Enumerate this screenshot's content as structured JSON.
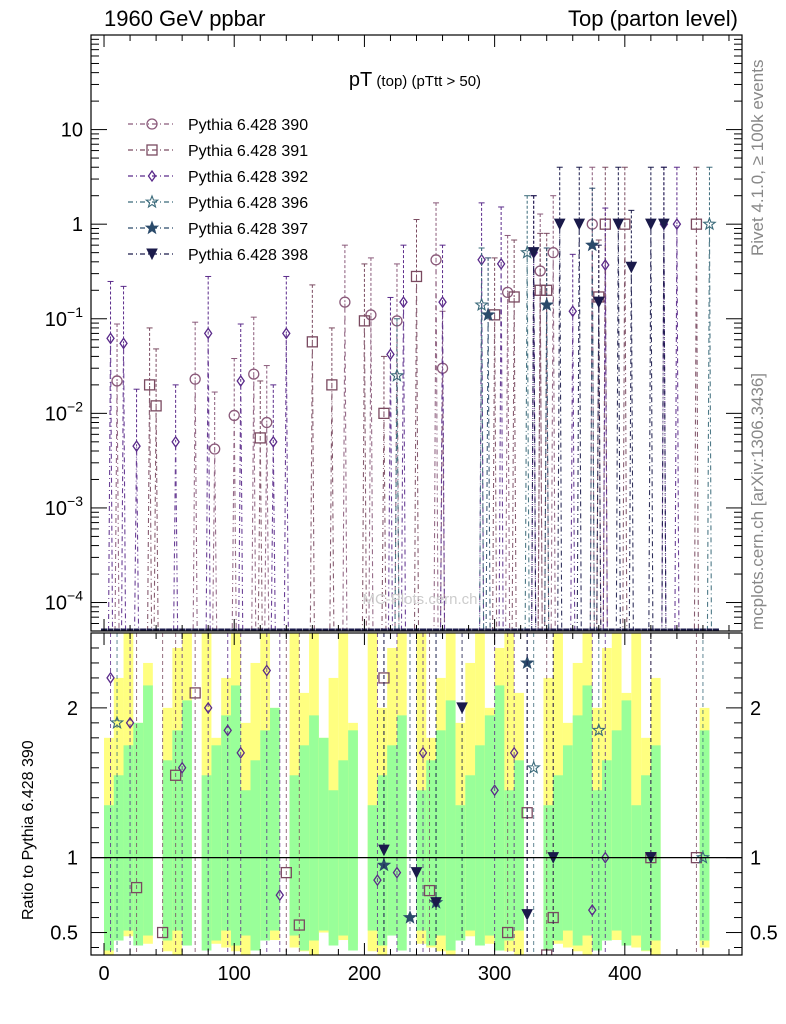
{
  "header": {
    "left": "1960 GeV ppbar",
    "right": "Top (parton level)"
  },
  "side_labels": {
    "rivet": "Rivet 4.1.0, ≥ 100k events",
    "mcplots": "mcplots.cern.ch [arXiv:1306.3436]"
  },
  "watermark": "MC-Plots.cern.ch",
  "chart_data": [
    {
      "type": "line",
      "title_main": "pT",
      "title_sub": " (top) (pTtt > 50)",
      "xlabel": "",
      "ylabel": "",
      "yscale": "log",
      "xlim": [
        -10,
        490
      ],
      "ylim": [
        5e-05,
        100
      ],
      "x_ticks": [
        0,
        100,
        200,
        300,
        400
      ],
      "x_tick_labels": [
        "0",
        "100",
        "200",
        "300",
        "400"
      ],
      "y_ticks": [
        0.0001,
        0.001,
        0.01,
        0.1,
        1,
        10
      ],
      "y_tick_labels": [
        {
          "base": "10",
          "exp": "−4"
        },
        {
          "base": "10",
          "exp": "−3"
        },
        {
          "base": "10",
          "exp": "−2"
        },
        {
          "base": "10",
          "exp": "−1"
        },
        {
          "base": "1",
          "exp": ""
        },
        {
          "base": "10",
          "exp": ""
        }
      ],
      "legend_position": "top-left",
      "series": [
        {
          "name": "Pythia 6.428 390",
          "color": "#8a5a7a",
          "marker": "circle-open",
          "x": [
            10,
            70,
            85,
            100,
            115,
            125,
            185,
            205,
            225,
            255,
            260,
            310,
            335,
            345,
            375
          ],
          "y": [
            0.022,
            0.023,
            0.0042,
            0.0095,
            0.026,
            0.008,
            0.15,
            0.11,
            0.095,
            0.42,
            0.03,
            0.19,
            0.32,
            0.5,
            1.0
          ]
        },
        {
          "name": "Pythia 6.428 391",
          "color": "#7a4a60",
          "marker": "square-open",
          "x": [
            35,
            40,
            120,
            160,
            175,
            200,
            215,
            240,
            300,
            315,
            335,
            340,
            380,
            385,
            400,
            455
          ],
          "y": [
            0.02,
            0.012,
            0.0055,
            0.057,
            0.02,
            0.095,
            0.01,
            0.28,
            0.11,
            0.17,
            0.2,
            0.2,
            0.17,
            1.0,
            1.0,
            1.0
          ]
        },
        {
          "name": "Pythia 6.428 392",
          "color": "#5a2a8a",
          "marker": "diamond-open",
          "x": [
            5,
            15,
            25,
            55,
            80,
            105,
            130,
            140,
            220,
            230,
            260,
            290,
            305,
            330,
            360,
            385,
            430,
            440
          ],
          "y": [
            0.062,
            0.055,
            0.0045,
            0.005,
            0.07,
            0.022,
            0.005,
            0.07,
            0.042,
            0.15,
            0.15,
            0.42,
            0.38,
            0.5,
            0.12,
            0.37,
            1.0,
            1.0
          ]
        },
        {
          "name": "Pythia 6.428 396",
          "color": "#3a6a7a",
          "marker": "star-open",
          "x": [
            225,
            290,
            325,
            465
          ],
          "y": [
            0.025,
            0.14,
            0.5,
            1.0
          ]
        },
        {
          "name": "Pythia 6.428 397",
          "color": "#2a4a6a",
          "marker": "star-filled",
          "x": [
            295,
            340,
            375
          ],
          "y": [
            0.11,
            0.14,
            0.6
          ]
        },
        {
          "name": "Pythia 6.428 398",
          "color": "#1a1a4a",
          "marker": "triangle-down-filled",
          "x": [
            330,
            350,
            365,
            380,
            395,
            405,
            420,
            430
          ],
          "y": [
            0.5,
            1.0,
            1.0,
            0.15,
            1.0,
            0.35,
            1.0,
            1.0
          ]
        }
      ]
    },
    {
      "type": "line",
      "title": "",
      "ylabel": "Ratio to Pythia 6.428 390",
      "reference_line": 1,
      "xlim": [
        -10,
        490
      ],
      "ylim": [
        0.35,
        2.5
      ],
      "y_ticks": [
        0.5,
        1,
        2
      ],
      "y_tick_labels": [
        "0.5",
        "1",
        "2"
      ],
      "x_ticks": [
        0,
        100,
        200,
        300,
        400
      ],
      "x_tick_labels": [
        "0",
        "100",
        "200",
        "300",
        "400"
      ],
      "band_colors": {
        "inner": "#99ff99",
        "outer": "#ffff80"
      },
      "series": [
        {
          "name": "Pythia 6.428 391",
          "color": "#7a4a60",
          "marker": "square-open",
          "x": [
            25,
            45,
            55,
            70,
            140,
            150,
            215,
            250,
            310,
            325,
            340,
            345,
            420,
            455
          ],
          "y": [
            0.8,
            0.5,
            1.55,
            2.1,
            0.9,
            0.55,
            2.2,
            0.78,
            0.5,
            1.3,
            0.35,
            0.6,
            1.0,
            1.0
          ]
        },
        {
          "name": "Pythia 6.428 392",
          "color": "#5a2a8a",
          "marker": "diamond-open",
          "x": [
            5,
            20,
            60,
            80,
            95,
            105,
            125,
            135,
            210,
            225,
            245,
            300,
            315,
            375,
            385
          ],
          "y": [
            2.2,
            1.9,
            1.6,
            2.0,
            1.85,
            1.7,
            2.25,
            0.75,
            0.85,
            0.9,
            1.7,
            1.45,
            1.7,
            0.65,
            1.0
          ]
        },
        {
          "name": "Pythia 6.428 396",
          "color": "#3a6a7a",
          "marker": "star-open",
          "x": [
            10,
            330,
            380,
            460
          ],
          "y": [
            1.9,
            1.6,
            1.85,
            1.0
          ]
        },
        {
          "name": "Pythia 6.428 397",
          "color": "#2a4a6a",
          "marker": "star-filled",
          "x": [
            215,
            235,
            255,
            325
          ],
          "y": [
            0.95,
            0.6,
            0.7,
            2.3
          ]
        },
        {
          "name": "Pythia 6.428 398",
          "color": "#1a1a4a",
          "marker": "triangle-down-filled",
          "x": [
            215,
            240,
            255,
            275,
            325,
            345,
            420
          ],
          "y": [
            1.05,
            0.9,
            0.7,
            2.0,
            0.62,
            1.0,
            1.0
          ]
        }
      ]
    }
  ]
}
